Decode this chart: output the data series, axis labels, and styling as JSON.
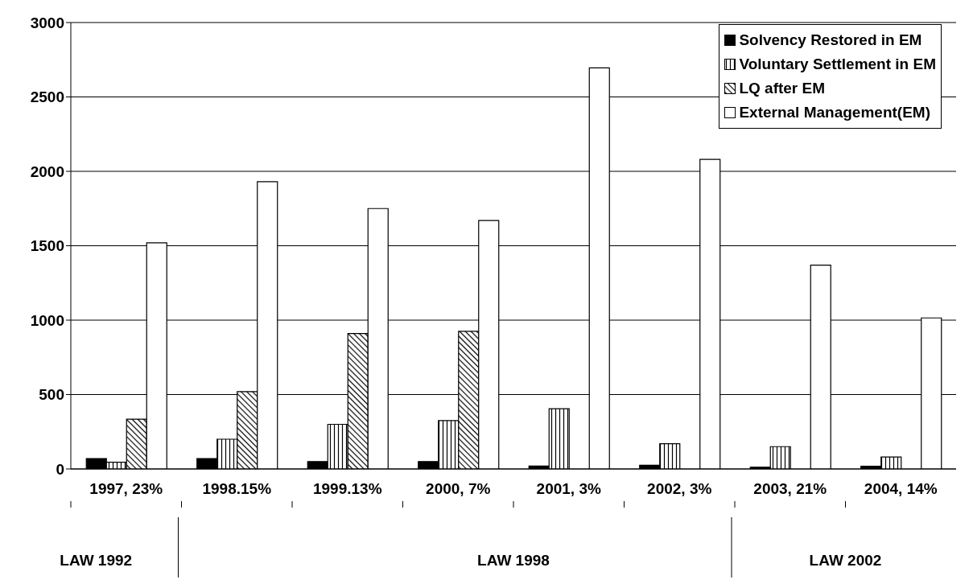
{
  "chart_data": {
    "type": "bar",
    "categories": [
      "1997, 23%",
      "1998.15%",
      "1999.13%",
      "2000, 7%",
      "2001, 3%",
      "2002, 3%",
      "2003, 21%",
      "2004, 14%"
    ],
    "series": [
      {
        "name": "Solvency Restored in EM",
        "color": "#000000",
        "values": [
          70,
          70,
          50,
          50,
          20,
          25,
          12,
          18
        ]
      },
      {
        "name": "Voluntary Settlement in EM",
        "color": "#000000",
        "values": [
          45,
          200,
          300,
          325,
          405,
          170,
          150,
          80
        ]
      },
      {
        "name": "LQ after EM",
        "color": "#000000",
        "values": [
          335,
          520,
          910,
          925,
          null,
          null,
          null,
          null
        ]
      },
      {
        "name": "External Management(EM)",
        "color": "#ffffff",
        "values": [
          1520,
          1930,
          1750,
          1670,
          2695,
          2080,
          1370,
          1015
        ]
      }
    ],
    "ylim": [
      0,
      3000
    ],
    "yticks": [
      0,
      500,
      1000,
      1500,
      2000,
      2500,
      3000
    ],
    "grid": "y",
    "legend": "top right",
    "annotations": [
      "LAW 1992",
      "LAW 1998",
      "LAW 2002"
    ]
  }
}
